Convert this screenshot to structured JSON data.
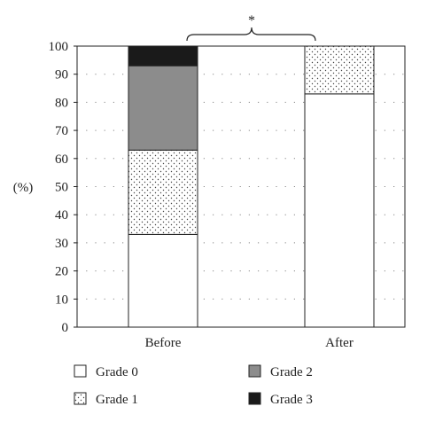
{
  "chart_data": {
    "type": "bar",
    "stacked": true,
    "ylabel": "(%)",
    "ylim": [
      0,
      100
    ],
    "yticks": [
      "0",
      "10",
      "20",
      "30",
      "40",
      "50",
      "60",
      "70",
      "80",
      "90",
      "100"
    ],
    "grid": "dotted-horizontal",
    "categories": [
      "Before",
      "After"
    ],
    "series": [
      {
        "name": "Grade 0",
        "values": [
          33,
          83
        ],
        "color": "#ffffff",
        "pattern": "none"
      },
      {
        "name": "Grade 1",
        "values": [
          30,
          17
        ],
        "color": "#ffffff",
        "pattern": "dots"
      },
      {
        "name": "Grade 2",
        "values": [
          30,
          0
        ],
        "color": "#8c8c8c",
        "pattern": "none"
      },
      {
        "name": "Grade 3",
        "values": [
          7,
          0
        ],
        "color": "#1a1a1a",
        "pattern": "none"
      }
    ],
    "annotation": "*",
    "legend_placement": "bottom"
  }
}
